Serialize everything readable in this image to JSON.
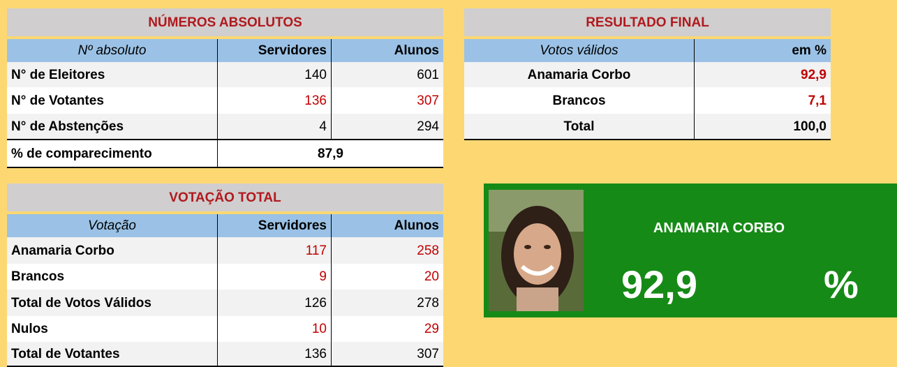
{
  "absolutos": {
    "title": "NÚMEROS ABSOLUTOS",
    "header": [
      "Nº absoluto",
      "Servidores",
      "Alunos"
    ],
    "rows": [
      [
        "N° de Eleitores",
        "140",
        "601"
      ],
      [
        "N° de Votantes",
        "136",
        "307"
      ],
      [
        "N° de Abstenções",
        "4",
        "294"
      ]
    ],
    "comparecimento": [
      "% de comparecimento",
      "87,9"
    ]
  },
  "votacao": {
    "title": "VOTAÇÃO TOTAL",
    "header": [
      "Votação",
      "Servidores",
      "Alunos"
    ],
    "rows": [
      [
        "Anamaria Corbo",
        "117",
        "258"
      ],
      [
        "Brancos",
        "9",
        "20"
      ],
      [
        "Total de Votos Válidos",
        "126",
        "278"
      ],
      [
        "Nulos",
        "10",
        "29"
      ],
      [
        "Total de Votantes",
        "136",
        "307"
      ]
    ]
  },
  "resultado": {
    "title": "RESULTADO FINAL",
    "header": [
      "Votos válidos",
      "em %"
    ],
    "rows": [
      [
        "Anamaria Corbo",
        "92,9"
      ],
      [
        "Brancos",
        "7,1"
      ],
      [
        "Total",
        "100,0"
      ]
    ]
  },
  "destaque": {
    "name": "ANAMARIA CORBO",
    "value": "92,9",
    "unit": "%"
  }
}
